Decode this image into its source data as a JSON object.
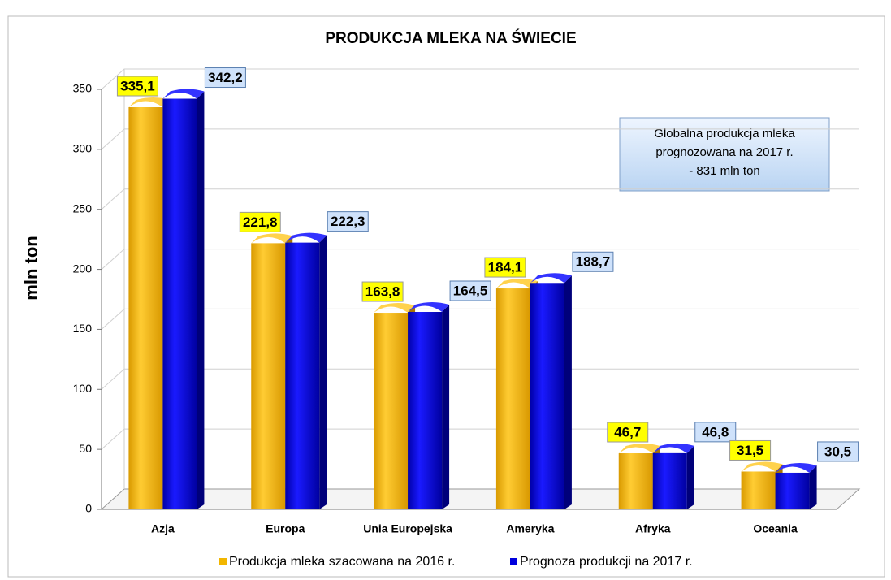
{
  "chart_data": {
    "type": "bar3d",
    "title": "PRODUKCJA MLEKA NA ŚWIECIE",
    "y_label": "mln ton",
    "annotation": [
      "Globalna produkcja mleka",
      "prognozowana na 2017 r.",
      "-  831 mln ton"
    ],
    "categories": [
      "Azja",
      "Europa",
      "Unia Europejska",
      "Ameryka",
      "Afryka",
      "Oceania"
    ],
    "series": [
      {
        "name": "Produkcja mleka szacowana na 2016 r.",
        "color": "#f2b600",
        "values": [
          335.1,
          221.8,
          163.8,
          184.1,
          46.7,
          31.5
        ],
        "value_labels": [
          "335,1",
          "221,8",
          "163,8",
          "184,1",
          "46,7",
          "31,5"
        ]
      },
      {
        "name": "Prognoza produkcji na 2017 r.",
        "color": "#0000dd",
        "values": [
          342.2,
          222.3,
          164.5,
          188.7,
          46.8,
          30.5
        ],
        "value_labels": [
          "342,2",
          "222,3",
          "164,5",
          "188,7",
          "46,8",
          "30,5"
        ]
      }
    ],
    "ylim": [
      0,
      350
    ],
    "yticks": [
      0,
      50,
      100,
      150,
      200,
      250,
      300,
      350
    ],
    "grid": true
  }
}
